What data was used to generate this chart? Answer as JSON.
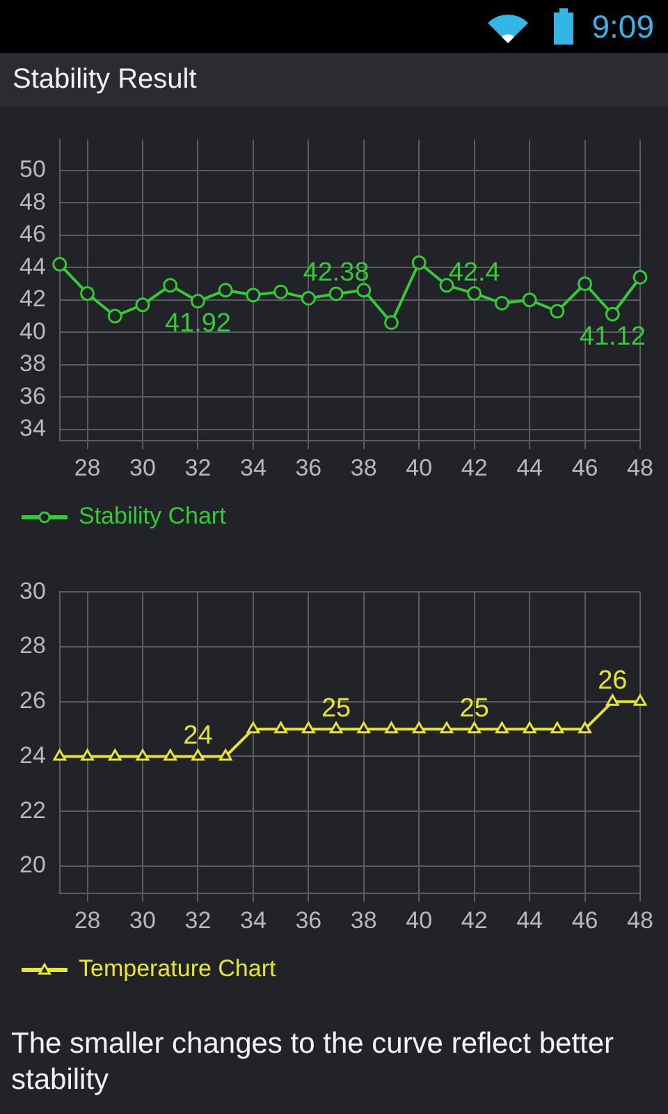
{
  "chart_data": [
    {
      "type": "line",
      "title": "Stability Result",
      "annotations": [
        "9:09"
      ],
      "x": [
        27,
        28,
        29,
        30,
        31,
        32,
        33,
        34,
        35,
        36,
        37,
        38,
        39,
        40,
        41,
        42,
        43,
        44,
        45,
        46,
        47,
        48
      ],
      "series": [
        {
          "name": "Stability Chart",
          "color": "#33cc33",
          "values": [
            44.2,
            42.4,
            41.0,
            41.7,
            42.9,
            41.92,
            42.6,
            42.3,
            42.5,
            42.1,
            42.38,
            42.6,
            40.6,
            44.3,
            42.9,
            42.4,
            41.8,
            42.0,
            41.3,
            43.0,
            41.12,
            43.4
          ],
          "value_labels": [
            null,
            null,
            null,
            null,
            null,
            "41.92",
            null,
            null,
            null,
            null,
            "42.38",
            null,
            null,
            null,
            null,
            "42.4",
            null,
            null,
            null,
            null,
            "41.12",
            null
          ]
        }
      ],
      "xlim": [
        27,
        48
      ],
      "xticks": [
        28,
        30,
        32,
        34,
        36,
        38,
        40,
        42,
        44,
        46,
        48
      ],
      "ylim": [
        33.3,
        51.9
      ],
      "yticks": [
        34,
        36,
        38,
        40,
        42,
        44,
        46,
        48,
        50
      ],
      "grid": true,
      "legend": "bottom left",
      "marker": "circle"
    },
    {
      "type": "line",
      "annotations": [
        "The smaller changes to the curve reflect better stability"
      ],
      "x": [
        27,
        28,
        29,
        30,
        31,
        32,
        33,
        34,
        35,
        36,
        37,
        38,
        39,
        40,
        41,
        42,
        43,
        44,
        45,
        46,
        47,
        48
      ],
      "series": [
        {
          "name": "Temperature Chart",
          "color": "#e6e62e",
          "values": [
            24,
            24,
            24,
            24,
            24,
            24,
            24,
            25,
            25,
            25,
            25,
            25,
            25,
            25,
            25,
            25,
            25,
            25,
            25,
            25,
            26,
            26
          ],
          "value_labels": [
            null,
            null,
            null,
            null,
            null,
            "24",
            null,
            null,
            null,
            null,
            "25",
            null,
            null,
            null,
            null,
            "25",
            null,
            null,
            null,
            null,
            "26",
            null
          ]
        }
      ],
      "xlim": [
        27,
        48
      ],
      "xticks": [
        28,
        30,
        32,
        34,
        36,
        38,
        40,
        42,
        44,
        46,
        48
      ],
      "ylim": [
        19,
        30
      ],
      "yticks": [
        20,
        22,
        24,
        26,
        28,
        30
      ],
      "grid": true,
      "legend": "bottom left",
      "marker": "triangle"
    }
  ]
}
